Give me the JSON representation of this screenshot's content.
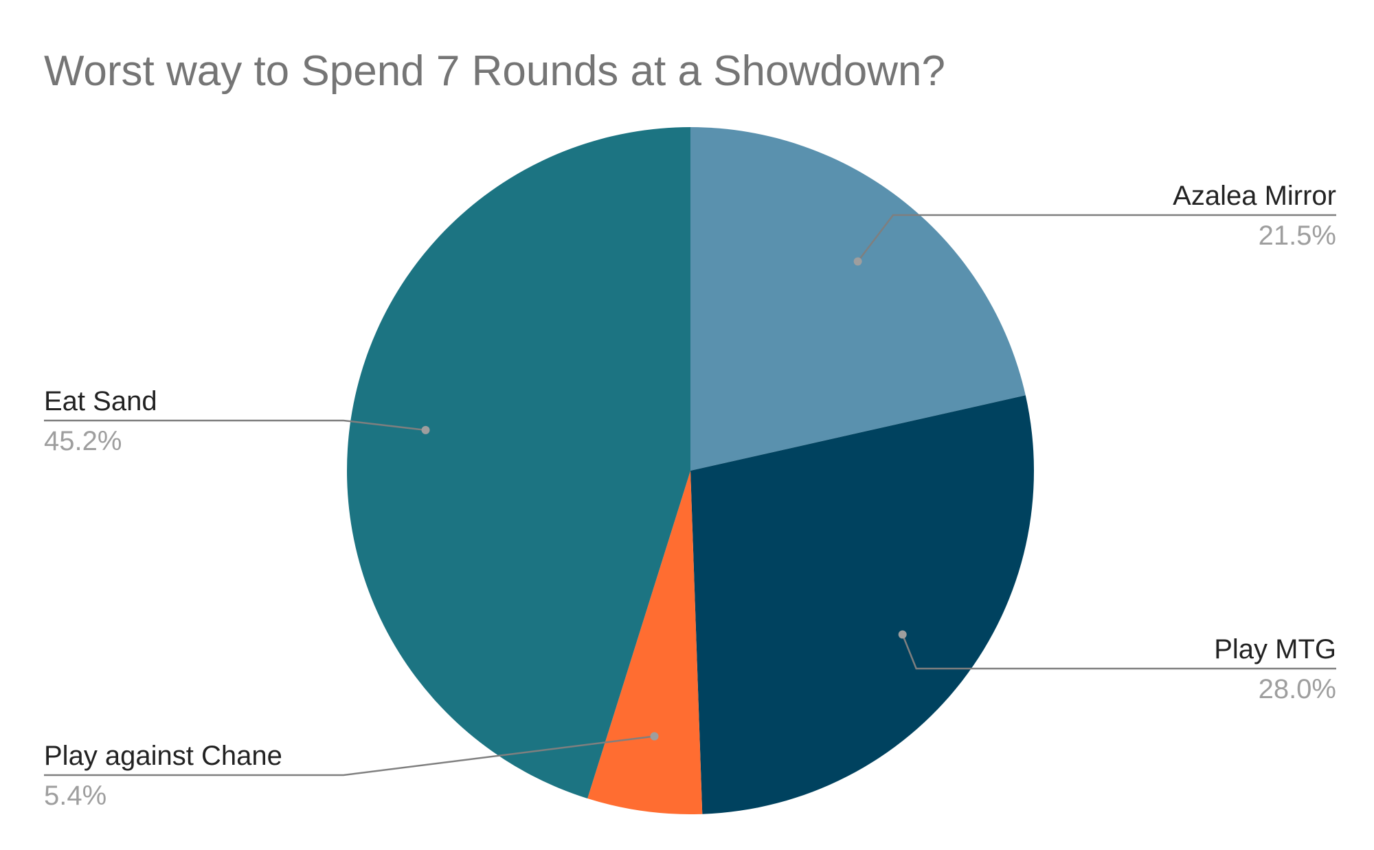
{
  "chart_data": {
    "type": "pie",
    "title": "Worst way to Spend 7 Rounds at a Showdown?",
    "slices": [
      {
        "label": "Azalea Mirror",
        "value": 21.5,
        "value_label": "21.5%",
        "color": "#5a91ae"
      },
      {
        "label": "Play MTG",
        "value": 28.0,
        "value_label": "28.0%",
        "color": "#00425f"
      },
      {
        "label": "Play against Chane",
        "value": 5.4,
        "value_label": "5.4%",
        "color": "#ff6d31"
      },
      {
        "label": "Eat Sand",
        "value": 45.2,
        "value_label": "45.2%",
        "color": "#1c7482"
      }
    ],
    "start": "12 o'clock",
    "direction": "clockwise",
    "legend": "none"
  }
}
